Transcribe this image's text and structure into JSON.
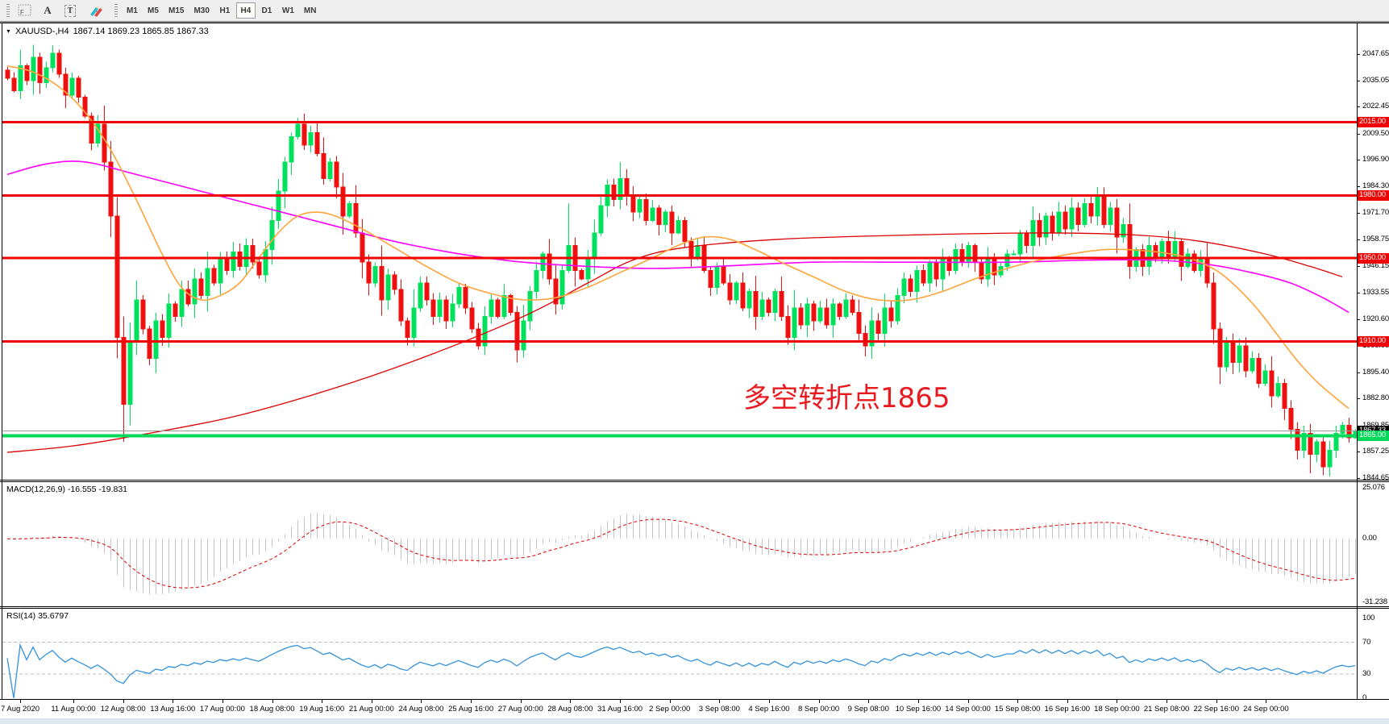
{
  "toolbar": {
    "tools": [
      {
        "name": "chart-template-tool",
        "glyph": "F"
      },
      {
        "name": "text-label-tool",
        "glyph": "A"
      },
      {
        "name": "text-box-tool",
        "glyph": "T"
      },
      {
        "name": "drawing-palette-tool",
        "glyph": ""
      }
    ],
    "timeframes": [
      {
        "label": "M1",
        "active": false
      },
      {
        "label": "M5",
        "active": false
      },
      {
        "label": "M15",
        "active": false
      },
      {
        "label": "M30",
        "active": false
      },
      {
        "label": "H1",
        "active": false
      },
      {
        "label": "H4",
        "active": true
      },
      {
        "label": "D1",
        "active": false
      },
      {
        "label": "W1",
        "active": false
      },
      {
        "label": "MN",
        "active": false
      }
    ]
  },
  "chart_header": {
    "dropdown_glyph": "▼",
    "symbol": "XAUUSD-,H4",
    "ohlc": "1867.14 1869.23 1865.85 1867.33"
  },
  "annotation": {
    "text": "多空转折点1865",
    "color": "#e8191f"
  },
  "macd_panel": {
    "label": "MACD(12,26,9) -16.555 -19.831",
    "ticks": [
      {
        "v": 25.076,
        "t": "25.076"
      },
      {
        "v": 0,
        "t": "0.00"
      },
      {
        "v": -31.238,
        "t": "-31.238"
      }
    ]
  },
  "rsi_panel": {
    "label": "RSI(14) 35.6797",
    "ticks": [
      {
        "v": 100,
        "t": "100"
      },
      {
        "v": 70,
        "t": "70"
      },
      {
        "v": 30,
        "t": "30"
      },
      {
        "v": 0,
        "t": "0"
      }
    ],
    "levels": [
      70,
      30
    ]
  },
  "price_axis": {
    "ticks": [
      2047.65,
      2035.05,
      2022.45,
      2009.5,
      1996.9,
      1984.3,
      1971.7,
      1958.75,
      1946.15,
      1933.55,
      1920.6,
      1908.0,
      1895.4,
      1882.8,
      1869.85,
      1857.25,
      1844.65
    ],
    "tags": [
      {
        "v": 2015.0,
        "t": "2015.00",
        "bg": "#f00000",
        "fg": "#ffffff"
      },
      {
        "v": 1980.0,
        "t": "1980.00",
        "bg": "#f00000",
        "fg": "#ffffff"
      },
      {
        "v": 1950.0,
        "t": "1950.00",
        "bg": "#f00000",
        "fg": "#ffffff"
      },
      {
        "v": 1910.0,
        "t": "1910.00",
        "bg": "#f00000",
        "fg": "#ffffff"
      },
      {
        "v": 1867.33,
        "t": "1867.33",
        "bg": "#000000",
        "fg": "#ffffff"
      },
      {
        "v": 1865.0,
        "t": "1865.00",
        "bg": "#00d95a",
        "fg": "#ffffff"
      }
    ]
  },
  "time_axis": {
    "labels": [
      "7 Aug 2020",
      "11 Aug 00:00",
      "12 Aug 08:00",
      "13 Aug 16:00",
      "17 Aug 00:00",
      "18 Aug 08:00",
      "19 Aug 16:00",
      "21 Aug 00:00",
      "24 Aug 08:00",
      "25 Aug 16:00",
      "27 Aug 00:00",
      "28 Aug 08:00",
      "31 Aug 16:00",
      "2 Sep 00:00",
      "3 Sep 08:00",
      "4 Sep 16:00",
      "8 Sep 00:00",
      "9 Sep 08:00",
      "10 Sep 16:00",
      "14 Sep 00:00",
      "15 Sep 08:00",
      "16 Sep 16:00",
      "18 Sep 00:00",
      "21 Sep 08:00",
      "22 Sep 16:00",
      "24 Sep 00:00"
    ]
  },
  "chart_data": {
    "type": "candlestick",
    "symbol": "XAUUSD",
    "timeframe": "H4",
    "price_range": [
      1843.9,
      2062.3
    ],
    "closes": [
      2036,
      2030,
      2042,
      2035,
      2046,
      2034,
      2041,
      2048,
      2038,
      2028,
      2036,
      2027,
      2018,
      2005,
      2014,
      1996,
      1970,
      1912,
      1880,
      1910,
      1930,
      1916,
      1902,
      1920,
      1912,
      1928,
      1922,
      1935,
      1928,
      1940,
      1932,
      1945,
      1938,
      1950,
      1944,
      1953,
      1946,
      1956,
      1948,
      1942,
      1954,
      1968,
      1982,
      1996,
      2008,
      2014,
      2004,
      2010,
      2000,
      1988,
      1996,
      1984,
      1970,
      1976,
      1962,
      1948,
      1938,
      1946,
      1930,
      1942,
      1935,
      1920,
      1912,
      1926,
      1938,
      1930,
      1922,
      1930,
      1920,
      1928,
      1936,
      1926,
      1916,
      1908,
      1922,
      1930,
      1922,
      1932,
      1924,
      1906,
      1920,
      1934,
      1944,
      1952,
      1940,
      1928,
      1944,
      1956,
      1944,
      1940,
      1950,
      1962,
      1975,
      1985,
      1978,
      1988,
      1980,
      1972,
      1978,
      1968,
      1974,
      1966,
      1972,
      1962,
      1968,
      1958,
      1950,
      1956,
      1944,
      1936,
      1946,
      1938,
      1930,
      1938,
      1926,
      1934,
      1922,
      1930,
      1924,
      1934,
      1922,
      1912,
      1926,
      1918,
      1928,
      1920,
      1926,
      1918,
      1928,
      1922,
      1930,
      1924,
      1914,
      1908,
      1920,
      1914,
      1926,
      1920,
      1932,
      1940,
      1934,
      1944,
      1938,
      1948,
      1940,
      1950,
      1944,
      1954,
      1948,
      1956,
      1948,
      1940,
      1950,
      1942,
      1946,
      1952,
      1952,
      1962,
      1956,
      1968,
      1960,
      1970,
      1962,
      1972,
      1964,
      1974,
      1966,
      1976,
      1970,
      1980,
      1966,
      1974,
      1960,
      1966,
      1946,
      1954,
      1946,
      1956,
      1950,
      1958,
      1950,
      1958,
      1946,
      1952,
      1944,
      1950,
      1938,
      1916,
      1898,
      1910,
      1900,
      1908,
      1896,
      1902,
      1890,
      1896,
      1884,
      1890,
      1878,
      1868,
      1858,
      1866,
      1856,
      1862,
      1850,
      1858,
      1866,
      1870,
      1864,
      1867.3
    ],
    "wick_overrides": {
      "4": [
        2052,
        null
      ],
      "18": [
        null,
        1862
      ],
      "45": [
        2017,
        null
      ],
      "79": [
        null,
        1900
      ],
      "87": [
        1976,
        null
      ],
      "95": [
        1996,
        null
      ],
      "133": [
        null,
        1903
      ],
      "169": [
        1984,
        null
      ],
      "202": [
        null,
        1847
      ],
      "204": [
        null,
        1846
      ]
    },
    "hlines": [
      {
        "price": 2015,
        "color": "#f00000",
        "width": 3
      },
      {
        "price": 1980,
        "color": "#f00000",
        "width": 3
      },
      {
        "price": 1950,
        "color": "#f00000",
        "width": 3
      },
      {
        "price": 1910,
        "color": "#f00000",
        "width": 3
      },
      {
        "price": 1865,
        "color": "#00d95a",
        "width": 4
      }
    ],
    "current_price": 1867.33,
    "moving_averages": [
      {
        "name": "ma-slow-red",
        "color": "#dd0000",
        "width": 1.3,
        "points": [
          [
            0,
            1857
          ],
          [
            10,
            1860
          ],
          [
            20,
            1865
          ],
          [
            35,
            1874
          ],
          [
            50,
            1887
          ],
          [
            65,
            1903
          ],
          [
            80,
            1922
          ],
          [
            90,
            1938
          ],
          [
            97,
            1949
          ],
          [
            105,
            1955
          ],
          [
            120,
            1959
          ],
          [
            140,
            1961
          ],
          [
            160,
            1962
          ],
          [
            175,
            1961
          ],
          [
            185,
            1958
          ],
          [
            195,
            1952
          ],
          [
            202,
            1946
          ],
          [
            207,
            1941
          ]
        ]
      },
      {
        "name": "ma-mid-magenta",
        "color": "#ff00ff",
        "width": 1.6,
        "points": [
          [
            0,
            1990
          ],
          [
            6,
            1995
          ],
          [
            12,
            1996
          ],
          [
            20,
            1990
          ],
          [
            30,
            1982
          ],
          [
            40,
            1974
          ],
          [
            50,
            1966
          ],
          [
            60,
            1958
          ],
          [
            70,
            1952
          ],
          [
            80,
            1948
          ],
          [
            90,
            1946
          ],
          [
            100,
            1945
          ],
          [
            110,
            1946
          ],
          [
            125,
            1948
          ],
          [
            140,
            1948
          ],
          [
            155,
            1948
          ],
          [
            168,
            1949
          ],
          [
            178,
            1949
          ],
          [
            186,
            1947
          ],
          [
            193,
            1943
          ],
          [
            199,
            1938
          ],
          [
            204,
            1931
          ],
          [
            208,
            1924
          ]
        ]
      },
      {
        "name": "ma-fast-orange",
        "color": "#ffa43b",
        "width": 1.6,
        "points": [
          [
            0,
            2042
          ],
          [
            4,
            2039
          ],
          [
            8,
            2032
          ],
          [
            12,
            2020
          ],
          [
            16,
            2002
          ],
          [
            20,
            1978
          ],
          [
            24,
            1952
          ],
          [
            27,
            1936
          ],
          [
            30,
            1930
          ],
          [
            33,
            1932
          ],
          [
            36,
            1938
          ],
          [
            39,
            1950
          ],
          [
            42,
            1962
          ],
          [
            45,
            1970
          ],
          [
            48,
            1972
          ],
          [
            51,
            1970
          ],
          [
            55,
            1964
          ],
          [
            60,
            1955
          ],
          [
            65,
            1946
          ],
          [
            70,
            1938
          ],
          [
            75,
            1933
          ],
          [
            80,
            1930
          ],
          [
            85,
            1931
          ],
          [
            90,
            1936
          ],
          [
            95,
            1943
          ],
          [
            100,
            1950
          ],
          [
            104,
            1956
          ],
          [
            108,
            1960
          ],
          [
            112,
            1959
          ],
          [
            116,
            1954
          ],
          [
            120,
            1948
          ],
          [
            125,
            1941
          ],
          [
            130,
            1934
          ],
          [
            135,
            1930
          ],
          [
            140,
            1930
          ],
          [
            145,
            1934
          ],
          [
            150,
            1940
          ],
          [
            155,
            1945
          ],
          [
            160,
            1949
          ],
          [
            165,
            1952
          ],
          [
            170,
            1954
          ],
          [
            174,
            1954
          ],
          [
            178,
            1953
          ],
          [
            182,
            1951
          ],
          [
            185,
            1948
          ],
          [
            188,
            1943
          ],
          [
            191,
            1935
          ],
          [
            194,
            1925
          ],
          [
            197,
            1913
          ],
          [
            200,
            1901
          ],
          [
            203,
            1891
          ],
          [
            206,
            1883
          ],
          [
            208,
            1878
          ]
        ]
      }
    ],
    "macd": {
      "fast": 12,
      "slow": 26,
      "signal": 9,
      "last_main": -16.555,
      "last_signal": -19.831,
      "range": [
        -33.1,
        27.7
      ]
    },
    "rsi": {
      "period": 14,
      "last": 35.6797,
      "range": [
        -1.2,
        112
      ]
    }
  },
  "colors": {
    "up": "#00e05c",
    "down": "#ee0f0f",
    "macd_hist": "#c4c4c4",
    "macd_signal": "#e00000",
    "rsi_line": "#3492da",
    "level_dash": "#bbbbbb",
    "current_line": "#9a9a9a",
    "background": "#ffffff",
    "toolbar_bg": "#efefef",
    "axis_text": "#000000"
  }
}
